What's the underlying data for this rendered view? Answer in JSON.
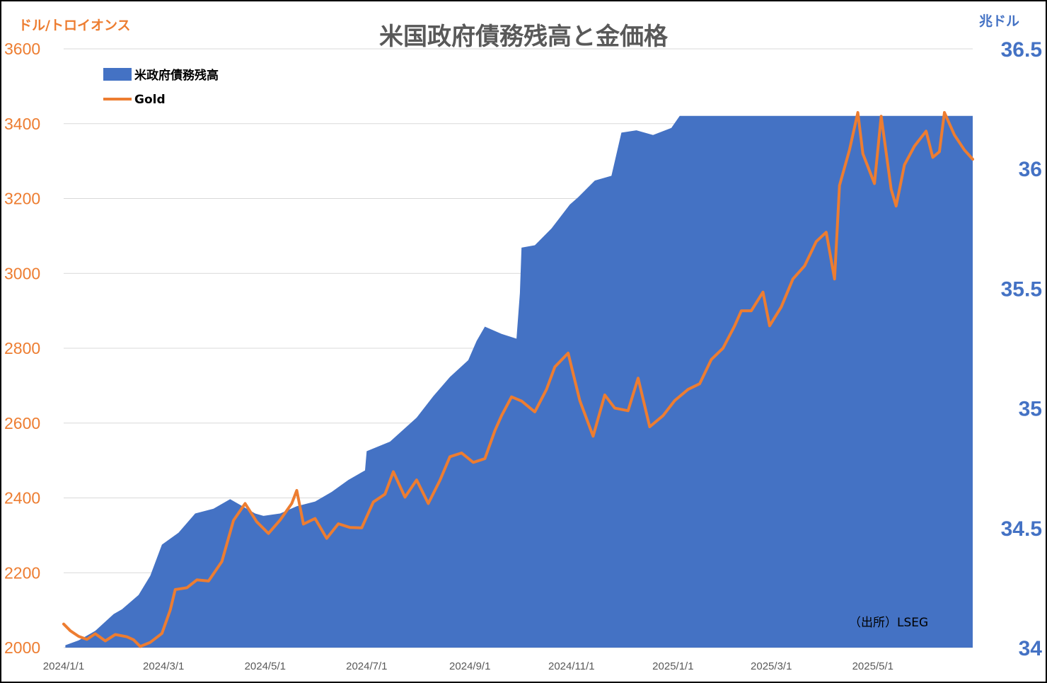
{
  "chart_data": {
    "type": "area",
    "title": "米国政府債務残高と金価格",
    "left_axis_unit": "ドル/トロイオンス",
    "right_axis_unit": "兆ドル",
    "source": "（出所）LSEG",
    "left_axis": {
      "ticks": [
        "2000",
        "2200",
        "2400",
        "2600",
        "2800",
        "3000",
        "3200",
        "3400",
        "3600"
      ],
      "range": [
        2000,
        3600
      ],
      "color": "#ED7D31"
    },
    "right_axis": {
      "ticks": [
        "34",
        "34.5",
        "35",
        "35.5",
        "36",
        "36.5"
      ],
      "range": [
        34,
        36.5
      ],
      "color": "#4472C4"
    },
    "x_ticks": [
      "2024/1/1",
      "2024/3/1",
      "2024/5/1",
      "2024/7/1",
      "2024/9/1",
      "2024/11/1",
      "2025/1/1",
      "2025/3/1",
      "2025/5/1"
    ],
    "x_range": [
      "2024-01-01",
      "2025-06-30"
    ],
    "grid": true,
    "legend_position": "top-left",
    "series": [
      {
        "name": "米政府債務残高",
        "type": "area",
        "axis": "right",
        "color": "#4472C4",
        "points": [
          [
            "2024-01-02",
            34.01
          ],
          [
            "2024-01-10",
            34.03
          ],
          [
            "2024-01-20",
            34.07
          ],
          [
            "2024-01-31",
            34.14
          ],
          [
            "2024-02-05",
            34.16
          ],
          [
            "2024-02-15",
            34.22
          ],
          [
            "2024-02-22",
            34.3
          ],
          [
            "2024-02-29",
            34.43
          ],
          [
            "2024-03-10",
            34.48
          ],
          [
            "2024-03-20",
            34.56
          ],
          [
            "2024-03-31",
            34.58
          ],
          [
            "2024-04-10",
            34.62
          ],
          [
            "2024-04-15",
            34.6
          ],
          [
            "2024-04-25",
            34.56
          ],
          [
            "2024-04-30",
            34.55
          ],
          [
            "2024-05-10",
            34.56
          ],
          [
            "2024-05-20",
            34.59
          ],
          [
            "2024-05-31",
            34.61
          ],
          [
            "2024-06-10",
            34.65
          ],
          [
            "2024-06-20",
            34.7
          ],
          [
            "2024-06-30",
            34.74
          ],
          [
            "2024-07-01",
            34.82
          ],
          [
            "2024-07-15",
            34.86
          ],
          [
            "2024-07-31",
            34.96
          ],
          [
            "2024-08-10",
            35.05
          ],
          [
            "2024-08-20",
            35.13
          ],
          [
            "2024-08-31",
            35.2
          ],
          [
            "2024-09-05",
            35.28
          ],
          [
            "2024-09-10",
            35.34
          ],
          [
            "2024-09-20",
            35.31
          ],
          [
            "2024-09-29",
            35.29
          ],
          [
            "2024-10-01",
            35.48
          ],
          [
            "2024-10-02",
            35.67
          ],
          [
            "2024-10-10",
            35.68
          ],
          [
            "2024-10-20",
            35.75
          ],
          [
            "2024-10-31",
            35.85
          ],
          [
            "2024-11-05",
            35.88
          ],
          [
            "2024-11-15",
            35.95
          ],
          [
            "2024-11-25",
            35.97
          ],
          [
            "2024-12-01",
            36.15
          ],
          [
            "2024-12-10",
            36.16
          ],
          [
            "2024-12-20",
            36.14
          ],
          [
            "2024-12-31",
            36.17
          ],
          [
            "2025-01-05",
            36.22
          ],
          [
            "2025-02-01",
            36.22
          ],
          [
            "2025-03-01",
            36.22
          ],
          [
            "2025-04-01",
            36.22
          ],
          [
            "2025-05-01",
            36.22
          ],
          [
            "2025-06-01",
            36.22
          ],
          [
            "2025-06-30",
            36.22
          ]
        ]
      },
      {
        "name": "Gold",
        "type": "line",
        "axis": "left",
        "color": "#ED7D31",
        "points": [
          [
            "2024-01-01",
            2063
          ],
          [
            "2024-01-05",
            2045
          ],
          [
            "2024-01-10",
            2030
          ],
          [
            "2024-01-15",
            2022
          ],
          [
            "2024-01-20",
            2037
          ],
          [
            "2024-01-26",
            2018
          ],
          [
            "2024-02-01",
            2035
          ],
          [
            "2024-02-08",
            2029
          ],
          [
            "2024-02-12",
            2021
          ],
          [
            "2024-02-16",
            2003
          ],
          [
            "2024-02-22",
            2014
          ],
          [
            "2024-02-29",
            2038
          ],
          [
            "2024-03-05",
            2100
          ],
          [
            "2024-03-08",
            2155
          ],
          [
            "2024-03-15",
            2160
          ],
          [
            "2024-03-21",
            2181
          ],
          [
            "2024-03-28",
            2178
          ],
          [
            "2024-04-05",
            2230
          ],
          [
            "2024-04-12",
            2340
          ],
          [
            "2024-04-19",
            2385
          ],
          [
            "2024-04-26",
            2336
          ],
          [
            "2024-05-03",
            2305
          ],
          [
            "2024-05-10",
            2341
          ],
          [
            "2024-05-17",
            2385
          ],
          [
            "2024-05-20",
            2420
          ],
          [
            "2024-05-24",
            2330
          ],
          [
            "2024-05-31",
            2345
          ],
          [
            "2024-06-07",
            2292
          ],
          [
            "2024-06-14",
            2331
          ],
          [
            "2024-06-21",
            2321
          ],
          [
            "2024-06-28",
            2320
          ],
          [
            "2024-07-05",
            2389
          ],
          [
            "2024-07-12",
            2410
          ],
          [
            "2024-07-17",
            2470
          ],
          [
            "2024-07-24",
            2402
          ],
          [
            "2024-07-31",
            2448
          ],
          [
            "2024-08-07",
            2385
          ],
          [
            "2024-08-14",
            2447
          ],
          [
            "2024-08-20",
            2510
          ],
          [
            "2024-08-27",
            2520
          ],
          [
            "2024-09-03",
            2495
          ],
          [
            "2024-09-10",
            2505
          ],
          [
            "2024-09-16",
            2580
          ],
          [
            "2024-09-20",
            2620
          ],
          [
            "2024-09-26",
            2670
          ],
          [
            "2024-10-02",
            2659
          ],
          [
            "2024-10-10",
            2630
          ],
          [
            "2024-10-17",
            2690
          ],
          [
            "2024-10-22",
            2750
          ],
          [
            "2024-10-30",
            2787
          ],
          [
            "2024-11-06",
            2660
          ],
          [
            "2024-11-14",
            2565
          ],
          [
            "2024-11-21",
            2675
          ],
          [
            "2024-11-27",
            2640
          ],
          [
            "2024-12-05",
            2633
          ],
          [
            "2024-12-11",
            2720
          ],
          [
            "2024-12-18",
            2590
          ],
          [
            "2024-12-26",
            2620
          ],
          [
            "2025-01-02",
            2660
          ],
          [
            "2025-01-10",
            2690
          ],
          [
            "2025-01-17",
            2705
          ],
          [
            "2025-01-24",
            2770
          ],
          [
            "2025-01-31",
            2800
          ],
          [
            "2025-02-07",
            2860
          ],
          [
            "2025-02-11",
            2900
          ],
          [
            "2025-02-17",
            2900
          ],
          [
            "2025-02-24",
            2950
          ],
          [
            "2025-02-28",
            2860
          ],
          [
            "2025-03-07",
            2910
          ],
          [
            "2025-03-14",
            2985
          ],
          [
            "2025-03-21",
            3020
          ],
          [
            "2025-03-28",
            3085
          ],
          [
            "2025-04-03",
            3110
          ],
          [
            "2025-04-08",
            2985
          ],
          [
            "2025-04-11",
            3235
          ],
          [
            "2025-04-17",
            3330
          ],
          [
            "2025-04-22",
            3430
          ],
          [
            "2025-04-25",
            3320
          ],
          [
            "2025-05-02",
            3240
          ],
          [
            "2025-05-06",
            3420
          ],
          [
            "2025-05-12",
            3225
          ],
          [
            "2025-05-15",
            3180
          ],
          [
            "2025-05-20",
            3290
          ],
          [
            "2025-05-26",
            3340
          ],
          [
            "2025-06-02",
            3380
          ],
          [
            "2025-06-06",
            3310
          ],
          [
            "2025-06-10",
            3325
          ],
          [
            "2025-06-13",
            3430
          ],
          [
            "2025-06-19",
            3370
          ],
          [
            "2025-06-25",
            3330
          ],
          [
            "2025-06-30",
            3305
          ]
        ]
      }
    ]
  }
}
